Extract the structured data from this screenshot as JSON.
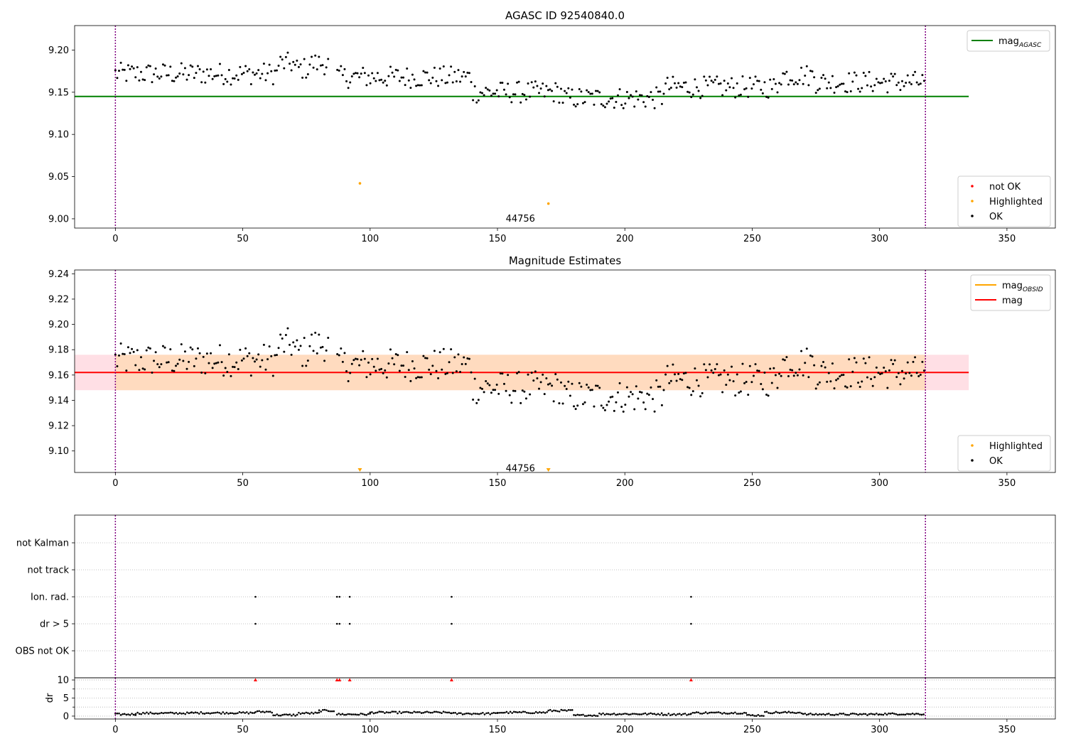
{
  "figure": {
    "colors": {
      "ok": "#000000",
      "highlighted": "#ffa500",
      "not_ok": "#ff0000",
      "agasc_line": "#008000",
      "mag_line": "#ff0000",
      "obsid_line": "#ffa500",
      "band_outer": "#ffc0cb",
      "band_inner": "#ffdab9",
      "obs_marker": "#800080",
      "grid": "#b0b0b0"
    }
  },
  "chart_data": [
    {
      "type": "scatter",
      "title": "AGASC ID 92540840.0",
      "xlim": [
        -16,
        369
      ],
      "ylim": [
        8.989,
        9.229
      ],
      "xticks": [
        0,
        50,
        100,
        150,
        200,
        250,
        300,
        350
      ],
      "yticks": [
        9.0,
        9.05,
        9.1,
        9.15,
        9.2
      ],
      "ytick_labels": [
        "9.00",
        "9.05",
        "9.10",
        "9.15",
        "9.20"
      ],
      "hlines": [
        {
          "name": "mag_AGASC",
          "y": 9.145,
          "x": [
            -16,
            335
          ],
          "color": "#008000"
        }
      ],
      "vlines": [
        0,
        318
      ],
      "annotations": [
        {
          "text": "44756",
          "x": 159,
          "y": 9.0
        }
      ],
      "highlighted_points": [
        {
          "x": 96,
          "y": 9.042
        },
        {
          "x": 170,
          "y": 9.018
        }
      ],
      "legends": [
        {
          "loc": "upper right",
          "entries": [
            {
              "label": "mag",
              "sub": "AGASC",
              "kind": "line",
              "color": "#008000"
            }
          ]
        },
        {
          "loc": "lower right",
          "entries": [
            {
              "label": "not OK",
              "kind": "dot",
              "color": "#ff0000"
            },
            {
              "label": "Highlighted",
              "kind": "dot",
              "color": "#ffa500"
            },
            {
              "label": "OK",
              "kind": "dot",
              "color": "#000000"
            }
          ]
        }
      ]
    },
    {
      "type": "scatter",
      "title": "Magnitude Estimates",
      "xlim": [
        -16,
        369
      ],
      "ylim": [
        9.083,
        9.243
      ],
      "xticks": [
        0,
        50,
        100,
        150,
        200,
        250,
        300,
        350
      ],
      "yticks": [
        9.1,
        9.12,
        9.14,
        9.16,
        9.18,
        9.2,
        9.22,
        9.24
      ],
      "ytick_labels": [
        "9.10",
        "9.12",
        "9.14",
        "9.16",
        "9.18",
        "9.20",
        "9.22",
        "9.24"
      ],
      "band": {
        "y0": 9.148,
        "y1": 9.176,
        "x": [
          -16,
          335
        ]
      },
      "hlines": [
        {
          "name": "mag",
          "y": 9.162,
          "x": [
            -16,
            335
          ],
          "color": "#ff0000"
        }
      ],
      "vlines": [
        0,
        318
      ],
      "annotations": [
        {
          "text": "44756",
          "x": 159,
          "y": 9.086
        }
      ],
      "highlighted_markers": [
        {
          "x": 96
        },
        {
          "x": 170
        }
      ],
      "legends": [
        {
          "loc": "upper right",
          "entries": [
            {
              "label": "mag",
              "sub": "OBSID",
              "kind": "line",
              "color": "#ffa500"
            },
            {
              "label": "mag",
              "kind": "line",
              "color": "#ff0000"
            }
          ]
        },
        {
          "loc": "lower right",
          "entries": [
            {
              "label": "Highlighted",
              "kind": "dot",
              "color": "#ffa500"
            },
            {
              "label": "OK",
              "kind": "dot",
              "color": "#000000"
            }
          ]
        }
      ]
    },
    {
      "type": "scatter",
      "categories": [
        "not Kalman",
        "not track",
        "Ion. rad.",
        "dr > 5",
        "OBS not OK"
      ],
      "xlim": [
        -16,
        369
      ],
      "vlines": [
        0,
        318
      ],
      "flags": [
        {
          "category": "Ion. rad.",
          "x": [
            55,
            87,
            88,
            92,
            132,
            226
          ]
        },
        {
          "category": "dr > 5",
          "x": [
            55,
            87,
            88,
            92,
            132,
            226
          ]
        }
      ]
    },
    {
      "type": "scatter",
      "ylabel": "dr",
      "xlim": [
        -16,
        369
      ],
      "ylim": [
        -0.8,
        10.6
      ],
      "yticks": [
        0,
        5,
        10
      ],
      "ytick_labels": [
        "0",
        "5",
        "10"
      ],
      "xticks": [
        0,
        50,
        100,
        150,
        200,
        250,
        300,
        350
      ],
      "vlines": [
        0,
        318
      ],
      "clipped_at_10": [
        55,
        87,
        88,
        92,
        132,
        226
      ],
      "dr_segments": [
        {
          "x0": 0,
          "x1": 8,
          "y": 0.5
        },
        {
          "x0": 8,
          "x1": 30,
          "y": 0.8
        },
        {
          "x0": 30,
          "x1": 55,
          "y": 0.9
        },
        {
          "x0": 55,
          "x1": 62,
          "y": 1.2
        },
        {
          "x0": 62,
          "x1": 72,
          "y": 0.3
        },
        {
          "x0": 72,
          "x1": 80,
          "y": 0.8
        },
        {
          "x0": 80,
          "x1": 86,
          "y": 1.5
        },
        {
          "x0": 87,
          "x1": 100,
          "y": 0.5
        },
        {
          "x0": 100,
          "x1": 132,
          "y": 1.0
        },
        {
          "x0": 132,
          "x1": 150,
          "y": 0.7
        },
        {
          "x0": 150,
          "x1": 170,
          "y": 1.0
        },
        {
          "x0": 170,
          "x1": 180,
          "y": 1.5
        },
        {
          "x0": 180,
          "x1": 190,
          "y": 0.2
        },
        {
          "x0": 190,
          "x1": 215,
          "y": 0.6
        },
        {
          "x0": 215,
          "x1": 226,
          "y": 0.5
        },
        {
          "x0": 226,
          "x1": 248,
          "y": 0.9
        },
        {
          "x0": 248,
          "x1": 255,
          "y": 0.2
        },
        {
          "x0": 255,
          "x1": 270,
          "y": 1.0
        },
        {
          "x0": 270,
          "x1": 300,
          "y": 0.5
        },
        {
          "x0": 300,
          "x1": 318,
          "y": 0.6
        }
      ]
    }
  ]
}
